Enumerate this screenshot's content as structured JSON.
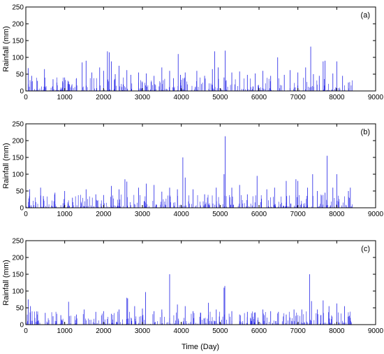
{
  "figure": {
    "xlabel": "Time (Day)"
  },
  "colors": {
    "series": "#1f1fe6",
    "axes": "#000000",
    "background": "#ffffff"
  },
  "chart_data": [
    {
      "type": "bar",
      "panel_label": "(a)",
      "xlabel": "",
      "ylabel": "Rainfall (mm)",
      "xlim": [
        0,
        9000
      ],
      "ylim": [
        0,
        250
      ],
      "xticks": [
        0,
        1000,
        2000,
        3000,
        4000,
        5000,
        6000,
        7000,
        8000,
        9000
      ],
      "yticks": [
        0,
        50,
        100,
        150,
        200,
        250
      ],
      "grid": false,
      "series": [
        {
          "x": [
            60,
            150,
            300,
            480,
            700,
            800,
            1000,
            1100,
            1300,
            1450,
            1550,
            1700,
            1900,
            2000,
            2100,
            2150,
            2200,
            2300,
            2400,
            2600,
            2700,
            2900,
            3100,
            3300,
            3500,
            3700,
            3800,
            3920,
            3980,
            4100,
            4400,
            4600,
            4800,
            4860,
            4950,
            5100,
            5130,
            5300,
            5500,
            5700,
            5900,
            6100,
            6300,
            6480,
            6650,
            6800,
            7000,
            7200,
            7330,
            7400,
            7550,
            7650,
            7700,
            7900,
            8000,
            8150,
            8300
          ],
          "values": [
            68,
            45,
            30,
            65,
            35,
            25,
            40,
            28,
            38,
            85,
            90,
            55,
            70,
            60,
            118,
            115,
            88,
            50,
            75,
            62,
            48,
            55,
            52,
            45,
            70,
            60,
            38,
            110,
            48,
            55,
            60,
            45,
            65,
            118,
            70,
            40,
            120,
            55,
            58,
            48,
            52,
            60,
            45,
            100,
            48,
            62,
            55,
            70,
            132,
            50,
            45,
            88,
            90,
            52,
            88,
            45,
            25
          ]
        }
      ]
    },
    {
      "type": "bar",
      "panel_label": "(b)",
      "xlabel": "",
      "ylabel": "Rainfall (mm)",
      "xlim": [
        0,
        9000
      ],
      "ylim": [
        0,
        250
      ],
      "xticks": [
        0,
        1000,
        2000,
        3000,
        4000,
        5000,
        6000,
        7000,
        8000,
        9000
      ],
      "yticks": [
        0,
        50,
        100,
        150,
        200,
        250
      ],
      "grid": false,
      "series": [
        {
          "x": [
            100,
            380,
            450,
            750,
            1000,
            1200,
            1550,
            1800,
            2000,
            2200,
            2400,
            2550,
            2600,
            2900,
            3100,
            3300,
            3500,
            3700,
            3900,
            4040,
            4100,
            4300,
            4600,
            4900,
            5100,
            5130,
            5300,
            5500,
            5700,
            5950,
            6200,
            6400,
            6700,
            6950,
            7000,
            7250,
            7380,
            7500,
            7700,
            7750,
            7900,
            8000,
            8300,
            8350
          ],
          "values": [
            55,
            60,
            35,
            45,
            50,
            30,
            55,
            40,
            38,
            65,
            55,
            85,
            78,
            60,
            72,
            68,
            48,
            60,
            55,
            150,
            90,
            55,
            40,
            60,
            100,
            213,
            60,
            68,
            40,
            95,
            55,
            60,
            80,
            85,
            80,
            60,
            100,
            50,
            45,
            155,
            60,
            100,
            50,
            60
          ]
        }
      ]
    },
    {
      "type": "bar",
      "panel_label": "(c)",
      "xlabel": "Time (Day)",
      "ylabel": "Rainfall (mm)",
      "xlim": [
        0,
        9000
      ],
      "ylim": [
        0,
        250
      ],
      "xticks": [
        0,
        1000,
        2000,
        3000,
        4000,
        5000,
        6000,
        7000,
        8000,
        9000
      ],
      "yticks": [
        0,
        50,
        100,
        150,
        200,
        250
      ],
      "grid": false,
      "series": [
        {
          "x": [
            60,
            120,
            300,
            500,
            700,
            900,
            1100,
            1300,
            1500,
            1800,
            2000,
            2200,
            2400,
            2600,
            2620,
            2800,
            3000,
            3080,
            3300,
            3500,
            3700,
            3900,
            4100,
            4300,
            4500,
            4700,
            4900,
            5100,
            5120,
            5300,
            5500,
            5700,
            5900,
            6100,
            6300,
            6500,
            6700,
            6900,
            7100,
            7300,
            7350,
            7500,
            7650,
            7800,
            8000,
            8200,
            8350
          ],
          "values": [
            75,
            55,
            30,
            35,
            25,
            28,
            68,
            30,
            45,
            38,
            40,
            32,
            45,
            80,
            78,
            55,
            48,
            97,
            40,
            45,
            150,
            60,
            55,
            40,
            35,
            65,
            45,
            110,
            115,
            40,
            30,
            38,
            35,
            45,
            40,
            38,
            30,
            45,
            45,
            150,
            70,
            45,
            72,
            55,
            63,
            55,
            20
          ]
        }
      ]
    }
  ]
}
